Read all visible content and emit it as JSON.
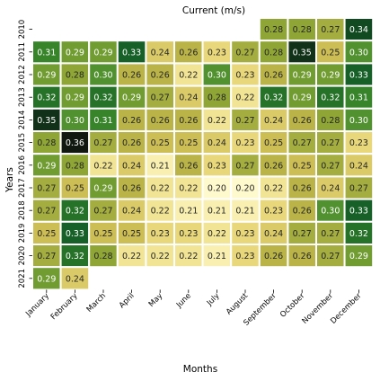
{
  "chart_data": {
    "type": "heatmap",
    "title": "Current (m/s)",
    "xlabel": "Months",
    "ylabel": "Years",
    "columns": [
      "January",
      "February",
      "March",
      "April",
      "May",
      "June",
      "July",
      "August",
      "September",
      "October",
      "November",
      "December"
    ],
    "rows": [
      "2010",
      "2011",
      "2012",
      "2013",
      "2014",
      "2015",
      "2016",
      "2017",
      "2018",
      "2019",
      "2020",
      "2021"
    ],
    "values": [
      [
        null,
        null,
        null,
        null,
        null,
        null,
        null,
        null,
        0.28,
        0.28,
        0.27,
        0.34
      ],
      [
        0.31,
        0.29,
        0.29,
        0.33,
        0.24,
        0.26,
        0.23,
        0.27,
        0.28,
        0.35,
        0.25,
        0.3
      ],
      [
        0.29,
        0.28,
        0.3,
        0.26,
        0.26,
        0.22,
        0.3,
        0.23,
        0.26,
        0.29,
        0.29,
        0.33
      ],
      [
        0.32,
        0.29,
        0.32,
        0.29,
        0.27,
        0.24,
        0.28,
        0.22,
        0.32,
        0.29,
        0.32,
        0.31
      ],
      [
        0.35,
        0.3,
        0.31,
        0.26,
        0.26,
        0.26,
        0.22,
        0.27,
        0.24,
        0.26,
        0.28,
        0.3
      ],
      [
        0.28,
        0.36,
        0.27,
        0.26,
        0.25,
        0.25,
        0.24,
        0.23,
        0.25,
        0.27,
        0.27,
        0.23
      ],
      [
        0.29,
        0.28,
        0.22,
        0.24,
        0.21,
        0.26,
        0.23,
        0.27,
        0.26,
        0.25,
        0.27,
        0.24
      ],
      [
        0.27,
        0.25,
        0.29,
        0.26,
        0.22,
        0.22,
        0.2,
        0.2,
        0.22,
        0.26,
        0.24,
        0.27
      ],
      [
        0.27,
        0.32,
        0.27,
        0.24,
        0.22,
        0.21,
        0.21,
        0.21,
        0.23,
        0.26,
        0.3,
        0.33
      ],
      [
        0.25,
        0.33,
        0.25,
        0.25,
        0.23,
        0.23,
        0.22,
        0.23,
        0.24,
        0.27,
        0.27,
        0.32
      ],
      [
        0.27,
        0.32,
        0.28,
        0.22,
        0.22,
        0.22,
        0.21,
        0.23,
        0.26,
        0.26,
        0.27,
        0.29
      ],
      [
        0.29,
        0.24,
        null,
        null,
        null,
        null,
        null,
        null,
        null,
        null,
        null,
        null
      ]
    ],
    "value_format": "2 decimals",
    "colormap": [
      "#fffacd",
      "#ecdc82",
      "#c8b94e",
      "#8fa636",
      "#3d8a2c",
      "#125a27",
      "#101810"
    ],
    "value_range": [
      0.2,
      0.36
    ],
    "colorbar": false
  }
}
